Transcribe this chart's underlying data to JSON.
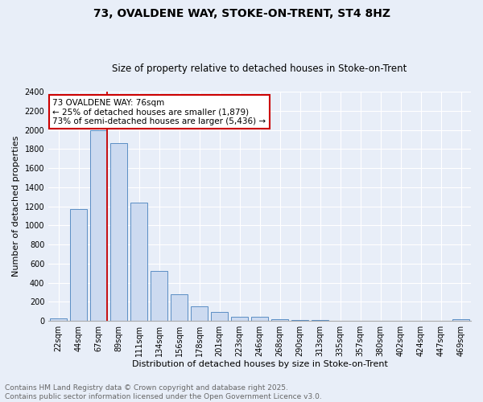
{
  "title": "73, OVALDENE WAY, STOKE-ON-TRENT, ST4 8HZ",
  "subtitle": "Size of property relative to detached houses in Stoke-on-Trent",
  "xlabel": "Distribution of detached houses by size in Stoke-on-Trent",
  "ylabel": "Number of detached properties",
  "footer_line1": "Contains HM Land Registry data © Crown copyright and database right 2025.",
  "footer_line2": "Contains public sector information licensed under the Open Government Licence v3.0.",
  "bar_labels": [
    "22sqm",
    "44sqm",
    "67sqm",
    "89sqm",
    "111sqm",
    "134sqm",
    "156sqm",
    "178sqm",
    "201sqm",
    "223sqm",
    "246sqm",
    "268sqm",
    "290sqm",
    "313sqm",
    "335sqm",
    "357sqm",
    "380sqm",
    "402sqm",
    "424sqm",
    "447sqm",
    "469sqm"
  ],
  "bar_values": [
    30,
    1170,
    2000,
    1860,
    1240,
    520,
    275,
    155,
    95,
    40,
    40,
    20,
    10,
    10,
    5,
    5,
    5,
    5,
    2,
    2,
    15
  ],
  "bar_color": "#ccdaf0",
  "bar_edge_color": "#5b8ec4",
  "annotation_text": "73 OVALDENE WAY: 76sqm\n← 25% of detached houses are smaller (1,879)\n73% of semi-detached houses are larger (5,436) →",
  "annotation_box_edge": "#cc0000",
  "redline_bin": 2,
  "ylim": [
    0,
    2400
  ],
  "yticks": [
    0,
    200,
    400,
    600,
    800,
    1000,
    1200,
    1400,
    1600,
    1800,
    2000,
    2200,
    2400
  ],
  "bg_color": "#e8eef8",
  "plot_bg_color": "#e8eef8",
  "grid_color": "#ffffff",
  "title_fontsize": 10,
  "subtitle_fontsize": 8.5,
  "axis_label_fontsize": 8,
  "tick_fontsize": 7,
  "annotation_fontsize": 7.5,
  "footer_fontsize": 6.5
}
